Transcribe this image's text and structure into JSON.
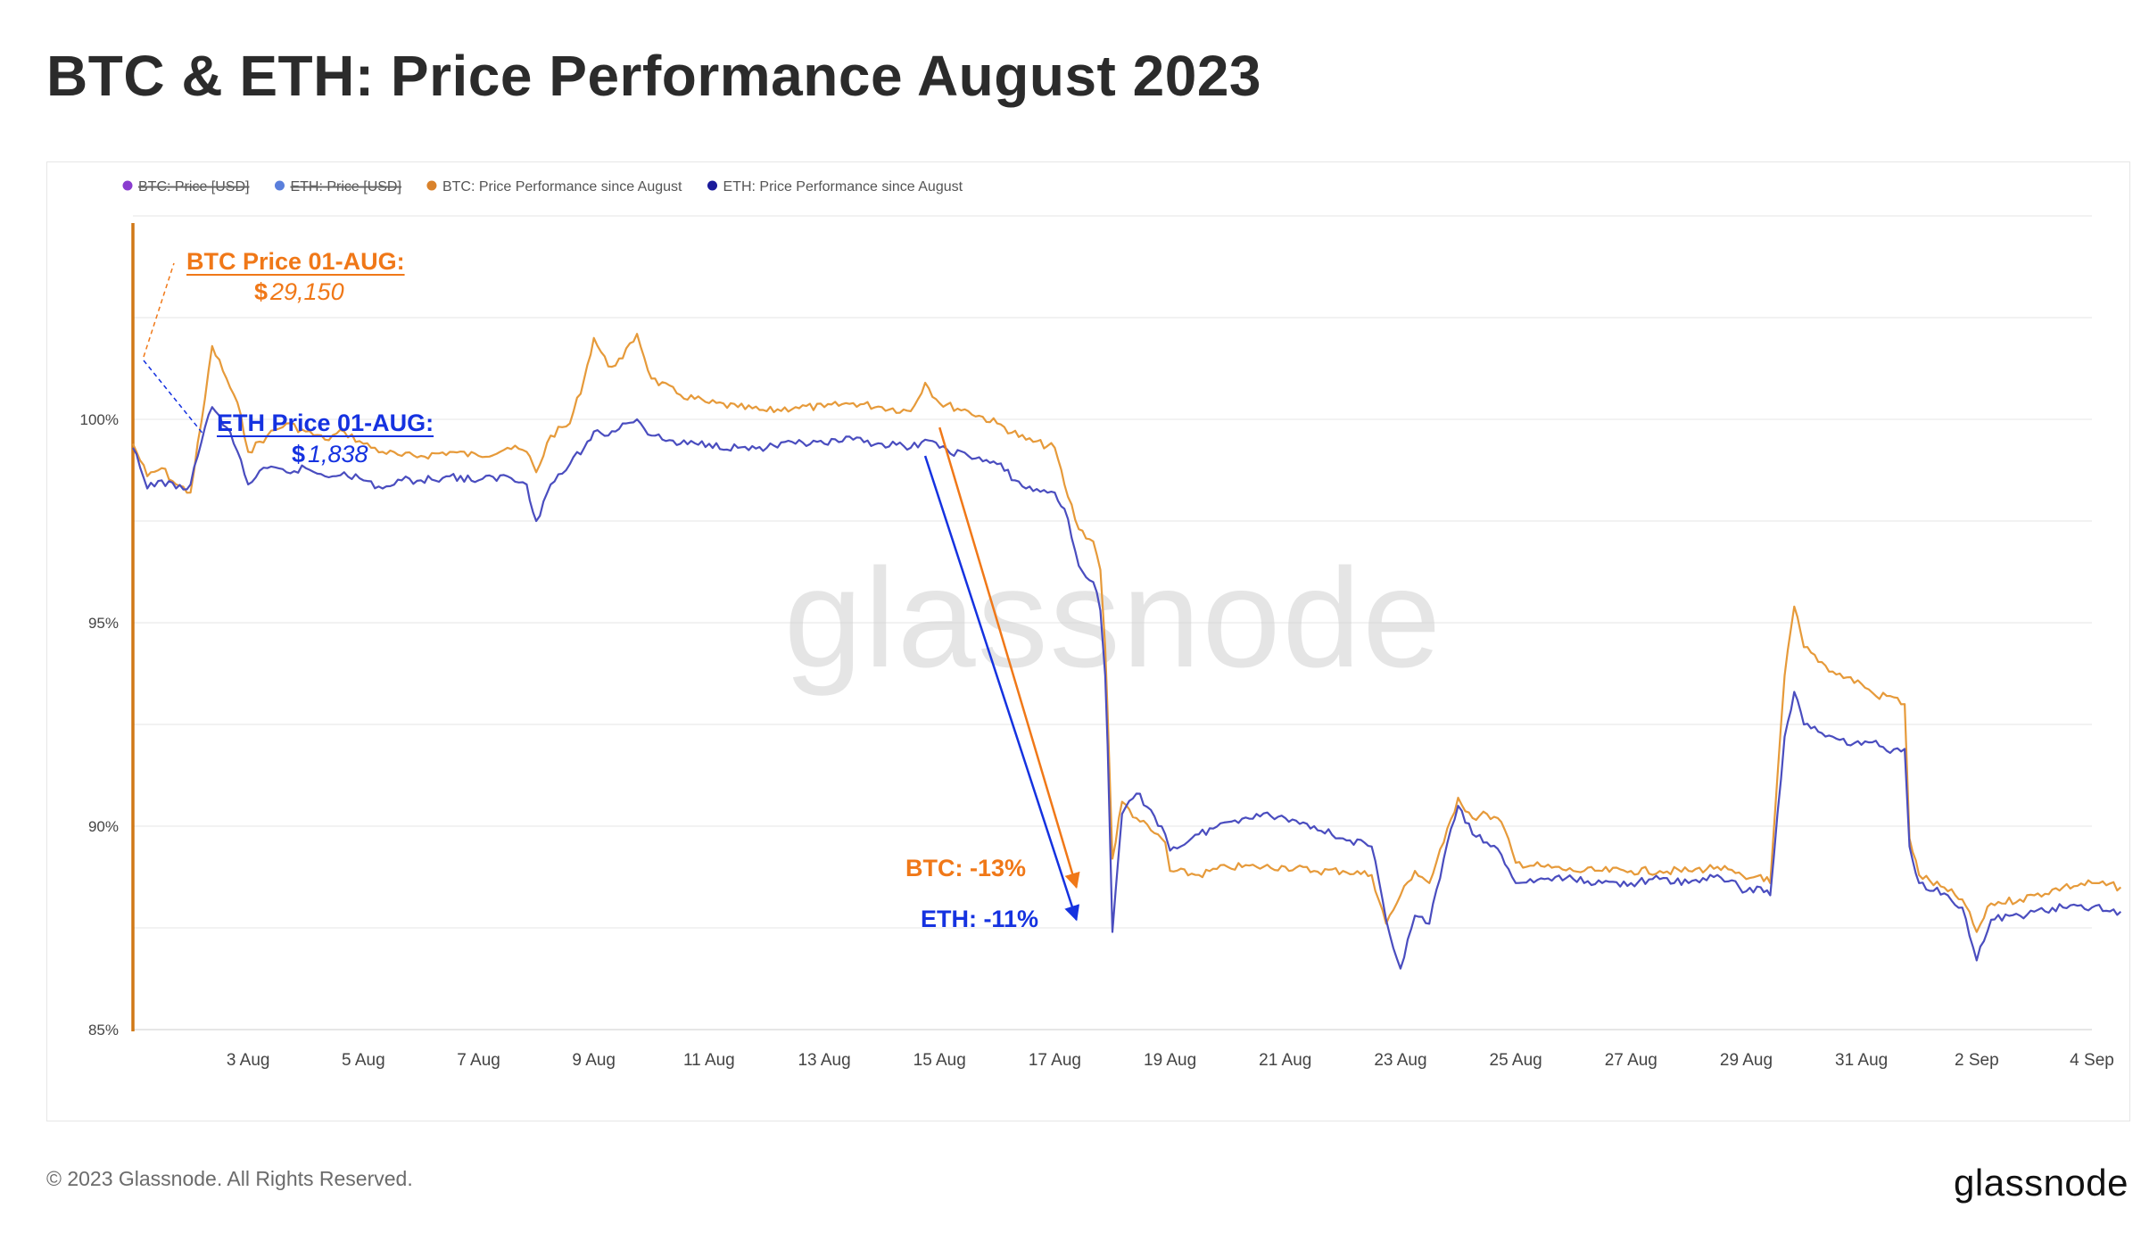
{
  "title": "BTC & ETH: Price Performance August 2023",
  "footer": "© 2023 Glassnode. All Rights Reserved.",
  "brand": "glassnode",
  "watermark": "glassnode",
  "colors": {
    "btc": "#e69a3a",
    "eth": "#4a4dbf",
    "btc_annot": "#f07818",
    "eth_annot": "#1532e0",
    "axis": "#d07816",
    "grid": "#eeeeee"
  },
  "chart_data": {
    "type": "line",
    "legend": [
      {
        "label": "BTC: Price [USD]",
        "color": "#8a3ccf",
        "hidden": true
      },
      {
        "label": "ETH: Price [USD]",
        "color": "#5a7fdc",
        "hidden": true
      },
      {
        "label": "BTC: Price Performance since August",
        "color": "#d9822b",
        "hidden": false
      },
      {
        "label": "ETH: Price Performance since August",
        "color": "#1a1a9a",
        "hidden": false
      }
    ],
    "legend_position": "top-left",
    "y_ticks": [
      {
        "value": 85,
        "label": "85%"
      },
      {
        "value": 90,
        "label": "90%"
      },
      {
        "value": 95,
        "label": "95%"
      },
      {
        "value": 100,
        "label": "100%"
      }
    ],
    "ylim": [
      85,
      105
    ],
    "x_ticks": [
      {
        "date": "2023-08-03",
        "label": "3 Aug"
      },
      {
        "date": "2023-08-05",
        "label": "5 Aug"
      },
      {
        "date": "2023-08-07",
        "label": "7 Aug"
      },
      {
        "date": "2023-08-09",
        "label": "9 Aug"
      },
      {
        "date": "2023-08-11",
        "label": "11 Aug"
      },
      {
        "date": "2023-08-13",
        "label": "13 Aug"
      },
      {
        "date": "2023-08-15",
        "label": "15 Aug"
      },
      {
        "date": "2023-08-17",
        "label": "17 Aug"
      },
      {
        "date": "2023-08-19",
        "label": "19 Aug"
      },
      {
        "date": "2023-08-21",
        "label": "21 Aug"
      },
      {
        "date": "2023-08-23",
        "label": "23 Aug"
      },
      {
        "date": "2023-08-25",
        "label": "25 Aug"
      },
      {
        "date": "2023-08-27",
        "label": "27 Aug"
      },
      {
        "date": "2023-08-29",
        "label": "29 Aug"
      },
      {
        "date": "2023-08-31",
        "label": "31 Aug"
      },
      {
        "date": "2023-09-02",
        "label": "2 Sep"
      },
      {
        "date": "2023-09-04",
        "label": "4 Sep"
      }
    ],
    "xlim": [
      "2023-08-01",
      "2023-09-04"
    ],
    "series": [
      {
        "name": "BTC: Price Performance since August",
        "color": "#e69a3a",
        "points": [
          [
            "2023-08-01",
            99.4
          ],
          [
            "2023-08-01T06",
            98.6
          ],
          [
            "2023-08-01T12",
            98.8
          ],
          [
            "2023-08-01T18",
            98.4
          ],
          [
            "2023-08-02",
            98.2
          ],
          [
            "2023-08-02T06",
            100.5
          ],
          [
            "2023-08-02T09",
            101.8
          ],
          [
            "2023-08-02T15",
            101.0
          ],
          [
            "2023-08-02T21",
            100.1
          ],
          [
            "2023-08-03",
            99.2
          ],
          [
            "2023-08-03T08",
            99.6
          ],
          [
            "2023-08-03T16",
            99.9
          ],
          [
            "2023-08-04",
            99.7
          ],
          [
            "2023-08-04T08",
            99.5
          ],
          [
            "2023-08-04T16",
            99.7
          ],
          [
            "2023-08-05",
            99.4
          ],
          [
            "2023-08-05T08",
            99.2
          ],
          [
            "2023-08-05T16",
            99.1
          ],
          [
            "2023-08-06",
            99.1
          ],
          [
            "2023-08-06T12",
            99.2
          ],
          [
            "2023-08-07",
            99.1
          ],
          [
            "2023-08-07T12",
            99.3
          ],
          [
            "2023-08-07T20",
            99.2
          ],
          [
            "2023-08-08",
            98.7
          ],
          [
            "2023-08-08T06",
            99.6
          ],
          [
            "2023-08-08T14",
            99.9
          ],
          [
            "2023-08-08T20",
            101.0
          ],
          [
            "2023-08-09",
            102.0
          ],
          [
            "2023-08-09T06",
            101.3
          ],
          [
            "2023-08-09T12",
            101.5
          ],
          [
            "2023-08-09T18",
            102.1
          ],
          [
            "2023-08-10",
            101.0
          ],
          [
            "2023-08-10T12",
            100.6
          ],
          [
            "2023-08-11",
            100.4
          ],
          [
            "2023-08-11T12",
            100.3
          ],
          [
            "2023-08-12",
            100.2
          ],
          [
            "2023-08-12T12",
            100.3
          ],
          [
            "2023-08-13",
            100.3
          ],
          [
            "2023-08-13T12",
            100.4
          ],
          [
            "2023-08-14",
            100.3
          ],
          [
            "2023-08-14T12",
            100.2
          ],
          [
            "2023-08-14T18",
            100.9
          ],
          [
            "2023-08-15",
            100.4
          ],
          [
            "2023-08-15T12",
            100.2
          ],
          [
            "2023-08-16",
            99.9
          ],
          [
            "2023-08-16T12",
            99.5
          ],
          [
            "2023-08-17",
            99.3
          ],
          [
            "2023-08-17T04",
            98.4
          ],
          [
            "2023-08-17T10",
            97.3
          ],
          [
            "2023-08-17T16",
            97.0
          ],
          [
            "2023-08-17T19",
            96.3
          ],
          [
            "2023-08-17T21",
            94.4
          ],
          [
            "2023-08-17T22",
            92.8
          ],
          [
            "2023-08-18",
            89.2
          ],
          [
            "2023-08-18T04",
            90.6
          ],
          [
            "2023-08-18T10",
            90.2
          ],
          [
            "2023-08-18T16",
            89.9
          ],
          [
            "2023-08-18T22",
            89.6
          ],
          [
            "2023-08-19",
            88.9
          ],
          [
            "2023-08-19T12",
            88.8
          ],
          [
            "2023-08-20",
            89.0
          ],
          [
            "2023-08-20T12",
            89.0
          ],
          [
            "2023-08-21",
            89.0
          ],
          [
            "2023-08-21T12",
            88.9
          ],
          [
            "2023-08-22",
            88.9
          ],
          [
            "2023-08-22T12",
            88.8
          ],
          [
            "2023-08-22T18",
            87.6
          ],
          [
            "2023-08-23",
            88.3
          ],
          [
            "2023-08-23T06",
            88.9
          ],
          [
            "2023-08-23T12",
            88.6
          ],
          [
            "2023-08-23T18",
            89.6
          ],
          [
            "2023-08-24",
            90.7
          ],
          [
            "2023-08-24T06",
            90.2
          ],
          [
            "2023-08-24T12",
            90.3
          ],
          [
            "2023-08-24T18",
            90.1
          ],
          [
            "2023-08-25",
            89.1
          ],
          [
            "2023-08-25T12",
            89.0
          ],
          [
            "2023-08-26",
            88.9
          ],
          [
            "2023-08-26T12",
            88.9
          ],
          [
            "2023-08-27",
            88.9
          ],
          [
            "2023-08-27T12",
            88.9
          ],
          [
            "2023-08-28",
            88.9
          ],
          [
            "2023-08-28T12",
            89.0
          ],
          [
            "2023-08-29",
            88.7
          ],
          [
            "2023-08-29T06",
            88.8
          ],
          [
            "2023-08-29T10",
            88.6
          ],
          [
            "2023-08-29T16",
            93.7
          ],
          [
            "2023-08-29T20",
            95.4
          ],
          [
            "2023-08-30",
            94.4
          ],
          [
            "2023-08-30T12",
            93.8
          ],
          [
            "2023-08-31",
            93.5
          ],
          [
            "2023-08-31T06",
            93.2
          ],
          [
            "2023-08-31T12",
            93.2
          ],
          [
            "2023-08-31T18",
            93.0
          ],
          [
            "2023-08-31T20",
            89.7
          ],
          [
            "2023-09-01",
            88.8
          ],
          [
            "2023-09-01T12",
            88.4
          ],
          [
            "2023-09-01T18",
            88.2
          ],
          [
            "2023-09-02",
            87.4
          ],
          [
            "2023-09-02T06",
            88.1
          ],
          [
            "2023-09-02T18",
            88.2
          ],
          [
            "2023-09-03",
            88.3
          ],
          [
            "2023-09-03T12",
            88.5
          ],
          [
            "2023-09-04",
            88.6
          ],
          [
            "2023-09-04T12",
            88.5
          ]
        ]
      },
      {
        "name": "ETH: Price Performance since August",
        "color": "#4a4dbf",
        "points": [
          [
            "2023-08-01",
            99.3
          ],
          [
            "2023-08-01T06",
            98.3
          ],
          [
            "2023-08-01T12",
            98.5
          ],
          [
            "2023-08-01T18",
            98.3
          ],
          [
            "2023-08-02",
            98.4
          ],
          [
            "2023-08-02T06",
            99.8
          ],
          [
            "2023-08-02T09",
            100.3
          ],
          [
            "2023-08-02T15",
            99.8
          ],
          [
            "2023-08-02T21",
            99.0
          ],
          [
            "2023-08-03",
            98.4
          ],
          [
            "2023-08-03T08",
            98.8
          ],
          [
            "2023-08-03T16",
            98.7
          ],
          [
            "2023-08-04",
            98.8
          ],
          [
            "2023-08-04T08",
            98.6
          ],
          [
            "2023-08-04T16",
            98.7
          ],
          [
            "2023-08-05",
            98.5
          ],
          [
            "2023-08-05T08",
            98.3
          ],
          [
            "2023-08-05T16",
            98.5
          ],
          [
            "2023-08-06",
            98.5
          ],
          [
            "2023-08-06T12",
            98.6
          ],
          [
            "2023-08-07",
            98.5
          ],
          [
            "2023-08-07T12",
            98.6
          ],
          [
            "2023-08-07T20",
            98.4
          ],
          [
            "2023-08-08",
            97.5
          ],
          [
            "2023-08-08T06",
            98.4
          ],
          [
            "2023-08-08T14",
            98.9
          ],
          [
            "2023-08-08T20",
            99.3
          ],
          [
            "2023-08-09",
            99.7
          ],
          [
            "2023-08-09T06",
            99.6
          ],
          [
            "2023-08-09T12",
            99.9
          ],
          [
            "2023-08-09T18",
            100.0
          ],
          [
            "2023-08-10",
            99.6
          ],
          [
            "2023-08-10T12",
            99.4
          ],
          [
            "2023-08-11",
            99.4
          ],
          [
            "2023-08-11T12",
            99.3
          ],
          [
            "2023-08-12",
            99.3
          ],
          [
            "2023-08-12T12",
            99.4
          ],
          [
            "2023-08-13",
            99.4
          ],
          [
            "2023-08-13T12",
            99.5
          ],
          [
            "2023-08-14",
            99.4
          ],
          [
            "2023-08-14T12",
            99.3
          ],
          [
            "2023-08-14T18",
            99.5
          ],
          [
            "2023-08-15",
            99.3
          ],
          [
            "2023-08-15T12",
            99.1
          ],
          [
            "2023-08-16",
            98.9
          ],
          [
            "2023-08-16T12",
            98.3
          ],
          [
            "2023-08-17",
            98.2
          ],
          [
            "2023-08-17T04",
            97.8
          ],
          [
            "2023-08-17T10",
            96.4
          ],
          [
            "2023-08-17T16",
            96.0
          ],
          [
            "2023-08-17T19",
            95.3
          ],
          [
            "2023-08-17T21",
            93.7
          ],
          [
            "2023-08-17T22",
            92.0
          ],
          [
            "2023-08-18",
            87.4
          ],
          [
            "2023-08-18T04",
            90.3
          ],
          [
            "2023-08-18T10",
            90.8
          ],
          [
            "2023-08-18T16",
            90.4
          ],
          [
            "2023-08-18T22",
            89.8
          ],
          [
            "2023-08-19",
            89.4
          ],
          [
            "2023-08-19T12",
            89.8
          ],
          [
            "2023-08-20",
            90.1
          ],
          [
            "2023-08-20T12",
            90.3
          ],
          [
            "2023-08-21",
            90.2
          ],
          [
            "2023-08-21T12",
            90.0
          ],
          [
            "2023-08-22",
            89.7
          ],
          [
            "2023-08-22T12",
            89.5
          ],
          [
            "2023-08-22T18",
            87.7
          ],
          [
            "2023-08-23",
            86.5
          ],
          [
            "2023-08-23T06",
            87.8
          ],
          [
            "2023-08-23T12",
            87.6
          ],
          [
            "2023-08-23T18",
            89.2
          ],
          [
            "2023-08-24",
            90.5
          ],
          [
            "2023-08-24T06",
            89.8
          ],
          [
            "2023-08-24T12",
            89.6
          ],
          [
            "2023-08-24T18",
            89.3
          ],
          [
            "2023-08-25",
            88.6
          ],
          [
            "2023-08-25T12",
            88.7
          ],
          [
            "2023-08-26",
            88.7
          ],
          [
            "2023-08-26T12",
            88.6
          ],
          [
            "2023-08-27",
            88.6
          ],
          [
            "2023-08-27T12",
            88.7
          ],
          [
            "2023-08-28",
            88.6
          ],
          [
            "2023-08-28T12",
            88.8
          ],
          [
            "2023-08-29",
            88.4
          ],
          [
            "2023-08-29T06",
            88.5
          ],
          [
            "2023-08-29T10",
            88.3
          ],
          [
            "2023-08-29T16",
            92.2
          ],
          [
            "2023-08-29T20",
            93.3
          ],
          [
            "2023-08-30",
            92.5
          ],
          [
            "2023-08-30T12",
            92.2
          ],
          [
            "2023-08-31",
            92.0
          ],
          [
            "2023-08-31T06",
            92.1
          ],
          [
            "2023-08-31T12",
            91.8
          ],
          [
            "2023-08-31T18",
            91.9
          ],
          [
            "2023-08-31T20",
            89.5
          ],
          [
            "2023-09-01",
            88.6
          ],
          [
            "2023-09-01T12",
            88.3
          ],
          [
            "2023-09-01T18",
            88.0
          ],
          [
            "2023-09-02",
            86.7
          ],
          [
            "2023-09-02T06",
            87.7
          ],
          [
            "2023-09-02T18",
            87.8
          ],
          [
            "2023-09-03",
            87.9
          ],
          [
            "2023-09-03T12",
            88.0
          ],
          [
            "2023-09-04",
            88.0
          ],
          [
            "2023-09-04T12",
            87.9
          ]
        ]
      }
    ],
    "annotations": [
      {
        "title": "BTC Price 01-AUG:",
        "currency": "$",
        "price": "29,150"
      },
      {
        "title": "ETH Price 01-AUG:",
        "currency": "$",
        "price": "1,838"
      },
      {
        "text": "BTC: -13%",
        "from": [
          "2023-08-15T00",
          99.8
        ],
        "to": [
          "2023-08-17T09",
          88.5
        ]
      },
      {
        "text": "ETH: -11%",
        "from": [
          "2023-08-14T18",
          99.1
        ],
        "to": [
          "2023-08-17T09",
          87.7
        ]
      }
    ]
  }
}
